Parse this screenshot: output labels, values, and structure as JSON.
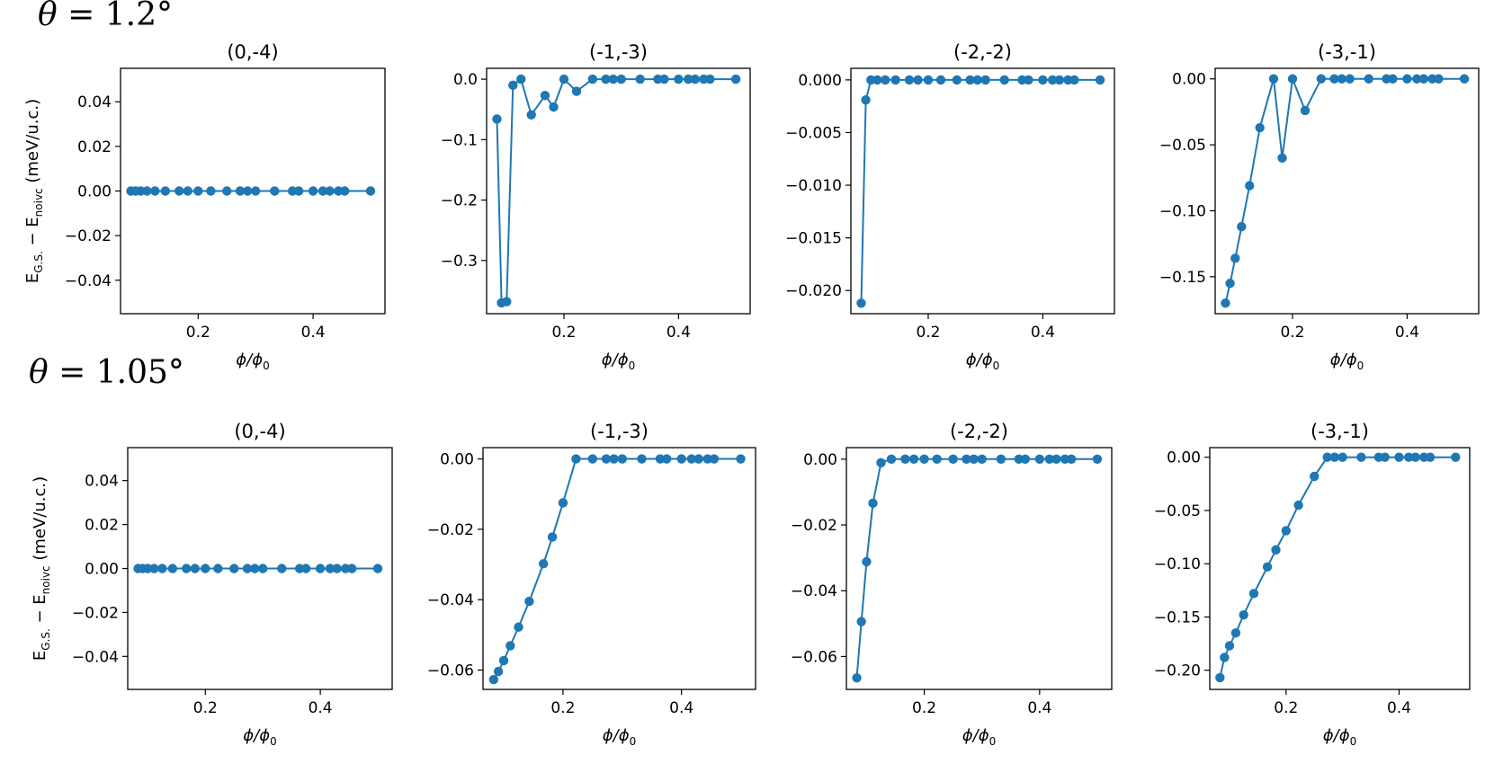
{
  "rows": [
    {
      "label": "θ = 1.2°",
      "ylabel": "E_G.S. − E_noivc (meV/u.c.)"
    },
    {
      "label": "θ = 1.05°",
      "ylabel": "E_G.S. − E_noivc (meV/u.c.)"
    }
  ],
  "chart_data": [
    {
      "type": "line",
      "row": 0,
      "title": "(0,-4)",
      "xlabel": "ϕ/ϕ₀",
      "ylabel": "E_G.S. − E_noivc (meV/u.c.)",
      "xlim": [
        0.065,
        0.525
      ],
      "ylim": [
        -0.055,
        0.055
      ],
      "xticks": [
        0.2,
        0.4
      ],
      "xtick_labels": [
        "0.2",
        "0.4"
      ],
      "yticks": [
        0.04,
        0.02,
        0.0,
        -0.02,
        -0.04
      ],
      "ytick_labels": [
        "0.04",
        "0.02",
        "0.00",
        "−0.02",
        "−0.04"
      ],
      "series": [
        {
          "color": "#1f77b4",
          "x": [
            0.083,
            0.091,
            0.1,
            0.111,
            0.125,
            0.143,
            0.167,
            0.182,
            0.2,
            0.222,
            0.25,
            0.273,
            0.286,
            0.3,
            0.333,
            0.364,
            0.375,
            0.4,
            0.417,
            0.429,
            0.444,
            0.455,
            0.5
          ],
          "y": [
            0,
            0,
            0,
            0,
            0,
            0,
            0,
            0,
            0,
            0,
            0,
            0,
            0,
            0,
            0,
            0,
            0,
            0,
            0,
            0,
            0,
            0,
            0
          ]
        }
      ]
    },
    {
      "type": "line",
      "row": 0,
      "title": "(-1,-3)",
      "xlabel": "ϕ/ϕ₀",
      "ylabel": "",
      "xlim": [
        0.065,
        0.525
      ],
      "ylim": [
        -0.388,
        0.018
      ],
      "xticks": [
        0.2,
        0.4
      ],
      "xtick_labels": [
        "0.2",
        "0.4"
      ],
      "yticks": [
        0.0,
        -0.1,
        -0.2,
        -0.3
      ],
      "ytick_labels": [
        "0.0",
        "−0.1",
        "−0.2",
        "−0.3"
      ],
      "series": [
        {
          "color": "#1f77b4",
          "x": [
            0.083,
            0.091,
            0.1,
            0.111,
            0.125,
            0.143,
            0.167,
            0.182,
            0.2,
            0.222,
            0.25,
            0.273,
            0.286,
            0.3,
            0.333,
            0.364,
            0.375,
            0.4,
            0.417,
            0.429,
            0.444,
            0.455,
            0.5
          ],
          "y": [
            -0.066,
            -0.37,
            -0.368,
            -0.01,
            0,
            -0.059,
            -0.027,
            -0.046,
            0,
            -0.02,
            0,
            0,
            0,
            0,
            0,
            0,
            0,
            0,
            0,
            0,
            0,
            0,
            0
          ]
        }
      ]
    },
    {
      "type": "line",
      "row": 0,
      "title": "(-2,-2)",
      "xlabel": "ϕ/ϕ₀",
      "ylabel": "",
      "xlim": [
        0.065,
        0.525
      ],
      "ylim": [
        -0.0222,
        0.0011
      ],
      "xticks": [
        0.2,
        0.4
      ],
      "xtick_labels": [
        "0.2",
        "0.4"
      ],
      "yticks": [
        0.0,
        -0.005,
        -0.01,
        -0.015,
        -0.02
      ],
      "ytick_labels": [
        "0.000",
        "−0.005",
        "−0.010",
        "−0.015",
        "−0.020"
      ],
      "series": [
        {
          "color": "#1f77b4",
          "x": [
            0.083,
            0.091,
            0.1,
            0.111,
            0.125,
            0.143,
            0.167,
            0.182,
            0.2,
            0.222,
            0.25,
            0.273,
            0.286,
            0.3,
            0.333,
            0.364,
            0.375,
            0.4,
            0.417,
            0.429,
            0.444,
            0.455,
            0.5
          ],
          "y": [
            -0.0212,
            -0.0019,
            0,
            0,
            0,
            0,
            0,
            0,
            0,
            0,
            0,
            0,
            0,
            0,
            0,
            0,
            0,
            0,
            0,
            0,
            0,
            0,
            0
          ]
        }
      ]
    },
    {
      "type": "line",
      "row": 0,
      "title": "(-3,-1)",
      "xlabel": "ϕ/ϕ₀",
      "ylabel": "",
      "xlim": [
        0.065,
        0.525
      ],
      "ylim": [
        -0.178,
        0.008
      ],
      "xticks": [
        0.2,
        0.4
      ],
      "xtick_labels": [
        "0.2",
        "0.4"
      ],
      "yticks": [
        0.0,
        -0.05,
        -0.1,
        -0.15
      ],
      "ytick_labels": [
        "0.00",
        "−0.05",
        "−0.10",
        "−0.15"
      ],
      "series": [
        {
          "color": "#1f77b4",
          "x": [
            0.083,
            0.091,
            0.1,
            0.111,
            0.125,
            0.143,
            0.167,
            0.182,
            0.2,
            0.222,
            0.25,
            0.273,
            0.286,
            0.3,
            0.333,
            0.364,
            0.375,
            0.4,
            0.417,
            0.429,
            0.444,
            0.455,
            0.5
          ],
          "y": [
            -0.17,
            -0.155,
            -0.136,
            -0.112,
            -0.081,
            -0.037,
            0,
            -0.06,
            0,
            -0.024,
            0,
            0,
            0,
            0,
            0,
            0,
            0,
            0,
            0,
            0,
            0,
            0,
            0
          ]
        }
      ]
    },
    {
      "type": "line",
      "row": 1,
      "title": "(0,-4)",
      "xlabel": "ϕ/ϕ₀",
      "ylabel": "E_G.S. − E_noivc (meV/u.c.)",
      "xlim": [
        0.065,
        0.525
      ],
      "ylim": [
        -0.055,
        0.055
      ],
      "xticks": [
        0.2,
        0.4
      ],
      "xtick_labels": [
        "0.2",
        "0.4"
      ],
      "yticks": [
        0.04,
        0.02,
        0.0,
        -0.02,
        -0.04
      ],
      "ytick_labels": [
        "0.04",
        "0.02",
        "0.00",
        "−0.02",
        "−0.04"
      ],
      "series": [
        {
          "color": "#1f77b4",
          "x": [
            0.083,
            0.091,
            0.1,
            0.111,
            0.125,
            0.143,
            0.167,
            0.182,
            0.2,
            0.222,
            0.25,
            0.273,
            0.286,
            0.3,
            0.333,
            0.364,
            0.375,
            0.4,
            0.417,
            0.429,
            0.444,
            0.455,
            0.5
          ],
          "y": [
            0,
            0,
            0,
            0,
            0,
            0,
            0,
            0,
            0,
            0,
            0,
            0,
            0,
            0,
            0,
            0,
            0,
            0,
            0,
            0,
            0,
            0,
            0
          ]
        }
      ]
    },
    {
      "type": "line",
      "row": 1,
      "title": "(-1,-3)",
      "xlabel": "ϕ/ϕ₀",
      "ylabel": "",
      "xlim": [
        0.065,
        0.525
      ],
      "ylim": [
        -0.0655,
        0.0032
      ],
      "xticks": [
        0.2,
        0.4
      ],
      "xtick_labels": [
        "0.2",
        "0.4"
      ],
      "yticks": [
        0.0,
        -0.02,
        -0.04,
        -0.06
      ],
      "ytick_labels": [
        "0.00",
        "−0.02",
        "−0.04",
        "−0.06"
      ],
      "series": [
        {
          "color": "#1f77b4",
          "x": [
            0.083,
            0.091,
            0.1,
            0.111,
            0.125,
            0.143,
            0.167,
            0.182,
            0.2,
            0.222,
            0.25,
            0.273,
            0.286,
            0.3,
            0.333,
            0.364,
            0.375,
            0.4,
            0.417,
            0.429,
            0.444,
            0.455,
            0.5
          ],
          "y": [
            -0.0627,
            -0.0604,
            -0.0573,
            -0.0531,
            -0.0478,
            -0.0405,
            -0.0298,
            -0.0222,
            -0.0125,
            0,
            0,
            0,
            0,
            0,
            0,
            0,
            0,
            0,
            0,
            0,
            0,
            0,
            0
          ]
        }
      ]
    },
    {
      "type": "line",
      "row": 1,
      "title": "(-2,-2)",
      "xlabel": "ϕ/ϕ₀",
      "ylabel": "",
      "xlim": [
        0.065,
        0.525
      ],
      "ylim": [
        -0.07,
        0.0035
      ],
      "xticks": [
        0.2,
        0.4
      ],
      "xtick_labels": [
        "0.2",
        "0.4"
      ],
      "yticks": [
        0.0,
        -0.02,
        -0.04,
        -0.06
      ],
      "ytick_labels": [
        "0.00",
        "−0.02",
        "−0.04",
        "−0.06"
      ],
      "series": [
        {
          "color": "#1f77b4",
          "x": [
            0.083,
            0.091,
            0.1,
            0.111,
            0.125,
            0.143,
            0.167,
            0.182,
            0.2,
            0.222,
            0.25,
            0.273,
            0.286,
            0.3,
            0.333,
            0.364,
            0.375,
            0.4,
            0.417,
            0.429,
            0.444,
            0.455,
            0.5
          ],
          "y": [
            -0.0665,
            -0.0494,
            -0.0312,
            -0.0134,
            -0.0011,
            0,
            0,
            0,
            0,
            0,
            0,
            0,
            0,
            0,
            0,
            0,
            0,
            0,
            0,
            0,
            0,
            0,
            0
          ]
        }
      ]
    },
    {
      "type": "line",
      "row": 1,
      "title": "(-3,-1)",
      "xlabel": "ϕ/ϕ₀",
      "ylabel": "",
      "xlim": [
        0.065,
        0.525
      ],
      "ylim": [
        -0.218,
        0.009
      ],
      "xticks": [
        0.2,
        0.4
      ],
      "xtick_labels": [
        "0.2",
        "0.4"
      ],
      "yticks": [
        0.0,
        -0.05,
        -0.1,
        -0.15,
        -0.2
      ],
      "ytick_labels": [
        "0.00",
        "−0.05",
        "−0.10",
        "−0.15",
        "−0.20"
      ],
      "series": [
        {
          "color": "#1f77b4",
          "x": [
            0.083,
            0.091,
            0.1,
            0.111,
            0.125,
            0.143,
            0.167,
            0.182,
            0.2,
            0.222,
            0.25,
            0.273,
            0.286,
            0.3,
            0.333,
            0.364,
            0.375,
            0.4,
            0.417,
            0.429,
            0.444,
            0.455,
            0.5
          ],
          "y": [
            -0.207,
            -0.188,
            -0.177,
            -0.165,
            -0.148,
            -0.128,
            -0.103,
            -0.087,
            -0.069,
            -0.045,
            -0.018,
            0,
            0,
            0,
            0,
            0,
            0,
            0,
            0,
            0,
            0,
            0,
            0
          ]
        }
      ]
    }
  ]
}
